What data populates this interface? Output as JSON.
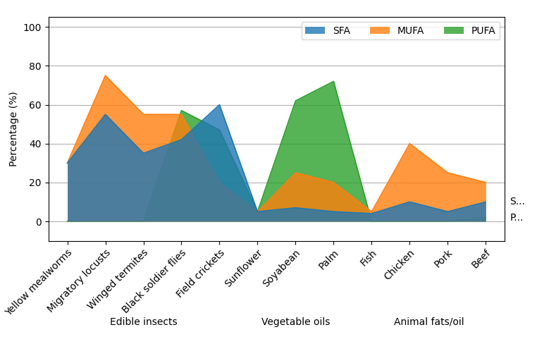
{
  "chart_data": {
    "type": "area",
    "categories": [
      "Yellow mealworms",
      "Migratory locusts",
      "Winged termites",
      "Black soldier flies",
      "Field crickets",
      "Sunflower",
      "Soyabean",
      "Palm",
      "Fish",
      "Chicken",
      "Pork",
      "Beef"
    ],
    "series": [
      {
        "name": "SFA",
        "values": [
          30,
          55,
          35,
          42,
          60,
          5,
          7,
          5,
          4,
          10,
          5,
          10
        ]
      },
      {
        "name": "MUFA",
        "values": [
          30,
          75,
          55,
          55,
          20,
          5,
          25,
          20,
          5,
          40,
          25,
          20
        ]
      },
      {
        "name": "PUFA",
        "values": [
          0,
          0,
          0,
          57,
          47,
          5,
          62,
          72,
          0,
          0,
          0,
          2
        ]
      }
    ],
    "groups": [
      {
        "label": "Edible insects",
        "start": 0,
        "end": 4
      },
      {
        "label": "Vegetable oils",
        "start": 5,
        "end": 7
      },
      {
        "label": "Animal fats/oil",
        "start": 8,
        "end": 11
      }
    ],
    "annotations": [
      {
        "text": "P...",
        "series": "PUFA"
      },
      {
        "text": "S...",
        "series": "SFA"
      }
    ],
    "ylabel": "Percentage (%)",
    "ylim": [
      -10,
      105
    ],
    "yticks": [
      0,
      20,
      40,
      60,
      80,
      100
    ],
    "grid": "y",
    "legend": "upper right"
  }
}
